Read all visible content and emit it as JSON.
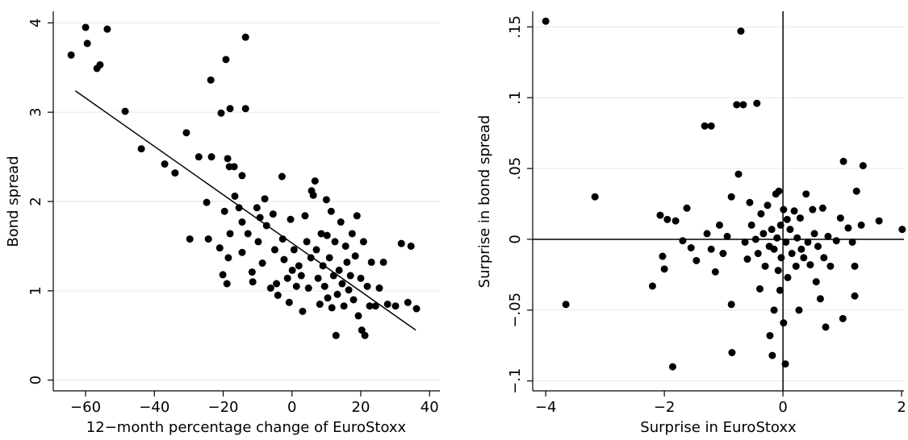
{
  "chart_data": [
    {
      "type": "scatter",
      "ylabel": "Bond spread",
      "xlabel": "12−month percentage change of EuroStoxx",
      "color": "#000000",
      "grid": true,
      "xlim": [
        -69.4,
        43
      ],
      "ylim": [
        -0.12,
        4.13
      ],
      "xticks": [
        {
          "value": -60,
          "label": "−60"
        },
        {
          "value": -40,
          "label": "−40"
        },
        {
          "value": -20,
          "label": "−20"
        },
        0,
        20,
        40
      ],
      "yticks": [
        0,
        1,
        2,
        3,
        4
      ],
      "fit_line": {
        "x": [
          -63,
          36
        ],
        "y": [
          3.24,
          0.56
        ]
      },
      "x": [
        -64.2,
        -60,
        -59.5,
        -56.7,
        -55.8,
        -53.7,
        -48.5,
        -43.8,
        -37,
        -34,
        -30.7,
        -29.7,
        -27.1,
        -23.6,
        -23.4,
        -24.8,
        -24.3,
        -21,
        -20.6,
        -20.1,
        -19.6,
        -18.9,
        -19.2,
        -18.7,
        -18.2,
        -18,
        -18.5,
        -18,
        -16.8,
        -16.6,
        -15.4,
        -14.5,
        -13.5,
        -13.5,
        -14.5,
        -14.5,
        -12.8,
        -11.6,
        -11.4,
        -10.2,
        -9.8,
        -9.3,
        -8.6,
        -7.9,
        -7.4,
        -6.2,
        -5.5,
        -5,
        -4.5,
        -4.1,
        -2.9,
        -2.7,
        -2.3,
        -1.3,
        -0.8,
        -0.4,
        0.1,
        0.6,
        1.3,
        2,
        2.7,
        3.1,
        3.8,
        4.3,
        4.8,
        5.5,
        5.7,
        6.2,
        6.7,
        7.1,
        7.6,
        8.1,
        8.5,
        9,
        9.5,
        10,
        10.2,
        10.4,
        10.9,
        11.4,
        11.6,
        12.1,
        12.5,
        12.8,
        13.2,
        13.7,
        14.2,
        14.6,
        15.1,
        15.6,
        16,
        16.5,
        17,
        17.5,
        17.9,
        18.4,
        18.9,
        19.3,
        20,
        20.3,
        20.8,
        21.2,
        21.9,
        22.6,
        23.1,
        24.3,
        25.4,
        26.6,
        27.8,
        30.1,
        31.8,
        33.7,
        34.6,
        36.2
      ],
      "values": [
        3.64,
        3.95,
        3.77,
        3.49,
        3.53,
        3.93,
        3.01,
        2.59,
        2.42,
        2.32,
        2.77,
        1.58,
        2.5,
        3.36,
        2.5,
        1.99,
        1.58,
        1.48,
        2.99,
        1.18,
        1.89,
        1.08,
        3.59,
        2.48,
        2.39,
        3.04,
        1.37,
        1.64,
        2.39,
        2.06,
        1.93,
        2.29,
        3.84,
        3.04,
        1.77,
        1.43,
        1.64,
        1.21,
        1.1,
        1.93,
        1.55,
        1.82,
        1.31,
        2.03,
        1.73,
        1.03,
        1.86,
        1.46,
        1.08,
        0.95,
        2.28,
        1.58,
        1.35,
        1.14,
        0.87,
        1.8,
        1.23,
        1.46,
        1.05,
        1.28,
        1.17,
        0.77,
        1.84,
        1.55,
        1.03,
        1.37,
        2.12,
        2.07,
        2.23,
        1.46,
        1.14,
        0.85,
        1.64,
        1.28,
        1.05,
        2.02,
        1.62,
        0.92,
        1.37,
        1.89,
        0.81,
        1.17,
        1.55,
        0.5,
        0.96,
        1.23,
        1.77,
        1.08,
        0.83,
        1.5,
        1.32,
        1.01,
        1.17,
        1.64,
        0.9,
        1.39,
        1.84,
        0.72,
        1.14,
        0.56,
        1.55,
        0.5,
        1.05,
        0.83,
        1.32,
        0.83,
        1.03,
        1.32,
        0.85,
        0.83,
        1.53,
        0.87,
        1.5,
        0.8
      ]
    },
    {
      "type": "scatter",
      "ylabel": "Surprise in bond spread",
      "xlabel": "Surprise in EuroStoxx",
      "color": "#000000",
      "grid": true,
      "xlim": [
        -4.22,
        2.04
      ],
      "ylim": [
        -0.107,
        0.161
      ],
      "xticks": [
        {
          "value": -4,
          "label": "−4"
        },
        {
          "value": -2,
          "label": "−2"
        },
        0,
        2
      ],
      "yticks": [
        {
          "value": -0.1,
          "label": "−.1"
        },
        {
          "value": -0.05,
          "label": "−.05"
        },
        0,
        {
          "value": 0.05,
          "label": ".05"
        },
        {
          "value": 0.1,
          "label": ".1"
        },
        {
          "value": 0.15,
          "label": ".15"
        }
      ],
      "reference_lines": {
        "x": 0,
        "y": 0
      },
      "x": [
        -4,
        -3.66,
        -3.17,
        -2.2,
        -2.07,
        -1.95,
        -1.81,
        -2.03,
        -2,
        -1.86,
        -1.69,
        -1.62,
        -1.55,
        -1.46,
        -1.32,
        -1.21,
        -1.28,
        -1.21,
        -1.14,
        -1.07,
        -1.01,
        -0.94,
        -0.87,
        -0.87,
        -0.86,
        -0.78,
        -0.75,
        -0.71,
        -0.67,
        -0.64,
        -0.6,
        -0.56,
        -0.53,
        -0.46,
        -0.44,
        -0.42,
        -0.39,
        -0.37,
        -0.33,
        -0.3,
        -0.26,
        -0.23,
        -0.22,
        -0.19,
        -0.18,
        -0.15,
        -0.15,
        -0.12,
        -0.1,
        -0.08,
        -0.07,
        -0.05,
        -0.04,
        -0.03,
        0.01,
        0.01,
        0.04,
        0.05,
        0.07,
        0.08,
        0.12,
        0.15,
        0.19,
        0.22,
        0.24,
        0.27,
        0.29,
        0.31,
        0.35,
        0.39,
        0.42,
        0.46,
        0.5,
        0.53,
        0.56,
        0.59,
        0.63,
        0.67,
        0.69,
        0.72,
        0.76,
        0.8,
        0.9,
        0.97,
        1.01,
        1.02,
        1.1,
        1.17,
        1.21,
        1.21,
        1.24,
        1.35,
        1.32,
        1.62,
        2.01
      ],
      "values": [
        0.154,
        -0.046,
        0.03,
        -0.033,
        0.017,
        0.014,
        0.013,
        -0.012,
        -0.021,
        -0.09,
        -0.001,
        0.022,
        -0.006,
        -0.015,
        0.08,
        0.08,
        0.004,
        -0.007,
        -0.023,
        0.01,
        -0.01,
        0.002,
        0.03,
        -0.046,
        -0.08,
        0.095,
        0.046,
        0.147,
        0.095,
        -0.002,
        -0.014,
        0.026,
        0.01,
        0,
        0.096,
        -0.01,
        -0.035,
        0.018,
        0.004,
        -0.019,
        0.024,
        -0.005,
        -0.068,
        0.007,
        -0.082,
        -0.007,
        -0.05,
        0.032,
        0.001,
        -0.022,
        0.034,
        -0.036,
        0.01,
        -0.013,
        0.021,
        -0.059,
        -0.088,
        -0.002,
        0.014,
        -0.027,
        0.007,
        -0.01,
        0.02,
        -0.019,
        0.001,
        -0.05,
        0.015,
        -0.007,
        -0.013,
        0.032,
        -0.002,
        -0.018,
        0.021,
        0.004,
        -0.03,
        -0.005,
        -0.042,
        0.022,
        -0.013,
        -0.062,
        0.002,
        -0.019,
        -0.001,
        0.015,
        -0.056,
        0.055,
        0.008,
        -0.002,
        -0.04,
        -0.019,
        0.034,
        0.052,
        0.01,
        0.013,
        0.007
      ]
    }
  ]
}
